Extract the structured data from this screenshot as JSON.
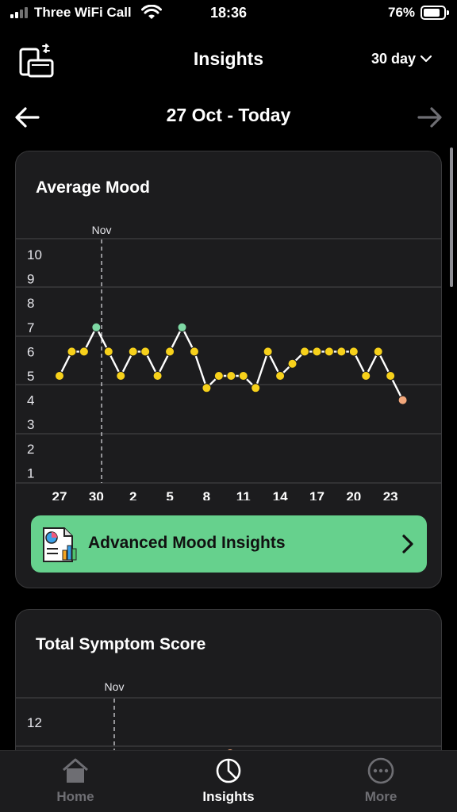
{
  "status_bar": {
    "carrier": "Three WiFi Call",
    "time": "18:36",
    "battery": "76%"
  },
  "header": {
    "title": "Insights",
    "range": "30 day"
  },
  "date_nav": {
    "label": "27 Oct - Today"
  },
  "mood_card": {
    "title": "Average Mood",
    "button_label": "Advanced Mood Insights"
  },
  "symptom_card": {
    "title": "Total Symptom Score",
    "month_marker": "Nov",
    "first_ytick": "12"
  },
  "tabbar": {
    "home": "Home",
    "insights": "Insights",
    "more": "More"
  },
  "colors": {
    "point": "#f7d11b",
    "high": "#7ed8a4",
    "low": "#f2a77b",
    "accent": "#66d18d"
  },
  "chart_data": {
    "type": "line",
    "title": "Average Mood",
    "month_marker": {
      "label": "Nov",
      "after_day_index": 4
    },
    "x_tick_labels": [
      "27",
      "30",
      "2",
      "5",
      "8",
      "11",
      "14",
      "17",
      "20",
      "23"
    ],
    "y_tick_labels": [
      "10",
      "9",
      "8",
      "7",
      "6",
      "5",
      "4",
      "3",
      "2",
      "1"
    ],
    "ylim": [
      1,
      10
    ],
    "grid": true,
    "series": [
      {
        "values": [
          5,
          6,
          6,
          7,
          6,
          5,
          6,
          6,
          5,
          6,
          7,
          6,
          4.5,
          5,
          5,
          5,
          4.5,
          6,
          5,
          5.5,
          6,
          6,
          6,
          6,
          6,
          5,
          6,
          5,
          4
        ],
        "point_colors": [
          "point",
          "point",
          "point",
          "high",
          "point",
          "point",
          "point",
          "point",
          "point",
          "point",
          "high",
          "point",
          "point",
          "point",
          "point",
          "point",
          "point",
          "point",
          "point",
          "point",
          "point",
          "point",
          "point",
          "point",
          "point",
          "point",
          "point",
          "point",
          "low"
        ]
      }
    ]
  }
}
